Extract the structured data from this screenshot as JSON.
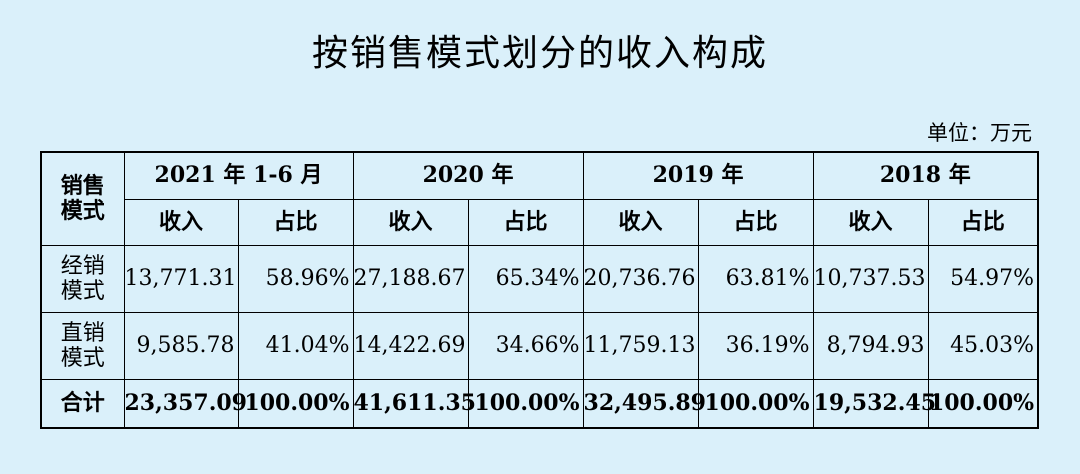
{
  "title": "按销售模式划分的收入构成",
  "unit": "单位：万元",
  "table": {
    "corner": [
      "销售",
      "模式"
    ],
    "periods": [
      "2021 年 1-6 月",
      "2020 年",
      "2019 年",
      "2018 年"
    ],
    "sub_headers": {
      "income": "收入",
      "ratio": "占比"
    },
    "rows": [
      {
        "mode": [
          "经销",
          "模式"
        ],
        "cells": [
          "13,771.31",
          "58.96%",
          "27,188.67",
          "65.34%",
          "20,736.76",
          "63.81%",
          "10,737.53",
          "54.97%"
        ]
      },
      {
        "mode": [
          "直销",
          "模式"
        ],
        "cells": [
          "9,585.78",
          "41.04%",
          "14,422.69",
          "34.66%",
          "11,759.13",
          "36.19%",
          "8,794.93",
          "45.03%"
        ]
      }
    ],
    "total": {
      "label": "合计",
      "cells": [
        "23,357.09",
        "100.00%",
        "41,611.35",
        "100.00%",
        "32,495.89",
        "100.00%",
        "19,532.45",
        "100.00%"
      ]
    }
  }
}
